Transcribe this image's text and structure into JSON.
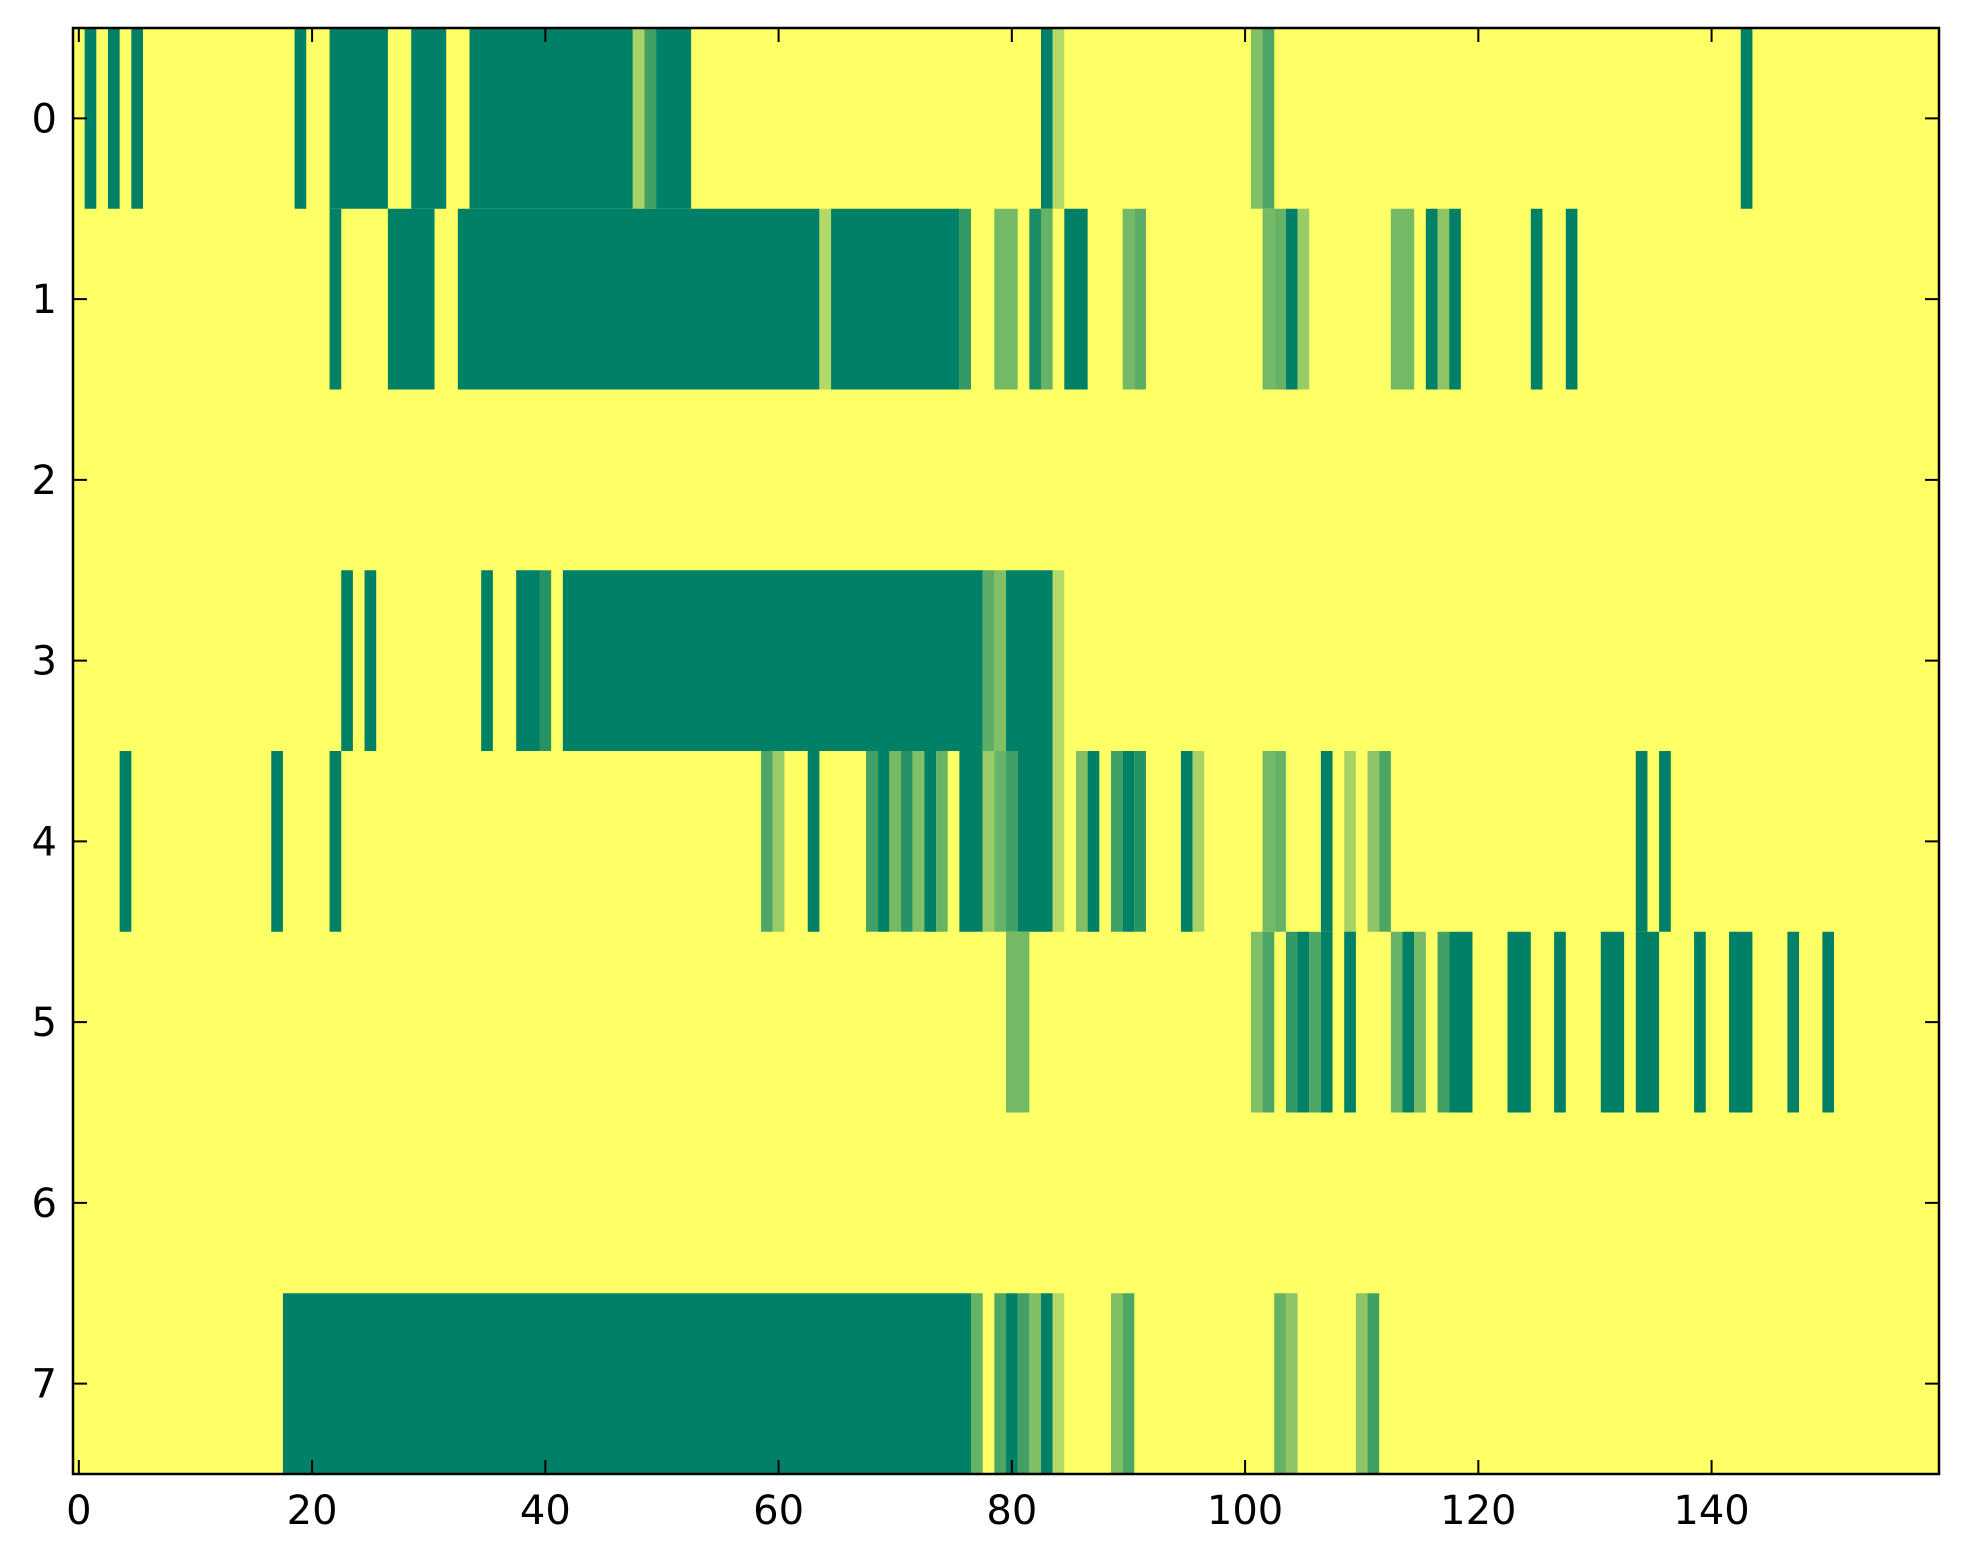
{
  "chart_data": {
    "type": "heatmap",
    "title": "",
    "xlabel": "",
    "ylabel": "",
    "xlim": [
      -0.5,
      159.5
    ],
    "ylim": [
      7.5,
      -0.5
    ],
    "x_ticks": [
      0,
      20,
      40,
      60,
      80,
      100,
      120,
      140
    ],
    "x_tick_labels": [
      "0",
      "20",
      "40",
      "60",
      "80",
      "100",
      "120",
      "140"
    ],
    "y_ticks": [
      0,
      1,
      2,
      3,
      4,
      5,
      6,
      7
    ],
    "y_tick_labels": [
      "0",
      "1",
      "2",
      "3",
      "4",
      "5",
      "6",
      "7"
    ],
    "grid": false,
    "colormap": "summer_r",
    "value_range": [
      0,
      1
    ],
    "background_value": 0,
    "colors": {
      "low": "#ffff66",
      "mid": "#80bf66",
      "high": "#008066"
    },
    "rows": [
      {
        "row": 0,
        "segments": [
          [
            1,
            1,
            1
          ],
          [
            3,
            3,
            1
          ],
          [
            5,
            5,
            1
          ],
          [
            19,
            19,
            1
          ],
          [
            22,
            26,
            1
          ],
          [
            29,
            31,
            1
          ],
          [
            34,
            47,
            1
          ],
          [
            48,
            48,
            0.35
          ],
          [
            49,
            49,
            0.75
          ],
          [
            50,
            52,
            1
          ],
          [
            83,
            83,
            1
          ],
          [
            84,
            84,
            0.3
          ],
          [
            101,
            101,
            0.5
          ],
          [
            102,
            102,
            0.7
          ],
          [
            143,
            143,
            1
          ]
        ]
      },
      {
        "row": 1,
        "segments": [
          [
            22,
            22,
            1
          ],
          [
            27,
            30,
            1
          ],
          [
            33,
            63,
            1
          ],
          [
            64,
            64,
            0.3
          ],
          [
            65,
            75,
            1
          ],
          [
            76,
            76,
            0.8
          ],
          [
            79,
            80,
            0.55
          ],
          [
            82,
            82,
            0.9
          ],
          [
            83,
            83,
            0.6
          ],
          [
            85,
            86,
            1
          ],
          [
            90,
            90,
            0.55
          ],
          [
            91,
            91,
            0.65
          ],
          [
            102,
            102,
            0.55
          ],
          [
            103,
            103,
            0.6
          ],
          [
            104,
            104,
            1
          ],
          [
            105,
            105,
            0.4
          ],
          [
            113,
            114,
            0.55
          ],
          [
            116,
            116,
            1
          ],
          [
            117,
            117,
            0.45
          ],
          [
            118,
            118,
            1
          ],
          [
            125,
            125,
            1
          ],
          [
            128,
            128,
            1
          ]
        ]
      },
      {
        "row": 2,
        "segments": []
      },
      {
        "row": 3,
        "segments": [
          [
            23,
            23,
            1
          ],
          [
            25,
            25,
            1
          ],
          [
            35,
            35,
            1
          ],
          [
            38,
            39,
            1
          ],
          [
            40,
            40,
            0.85
          ],
          [
            42,
            77,
            1
          ],
          [
            78,
            78,
            0.65
          ],
          [
            79,
            79,
            0.5
          ],
          [
            80,
            83,
            1
          ],
          [
            84,
            84,
            0.3
          ]
        ]
      },
      {
        "row": 4,
        "segments": [
          [
            4,
            4,
            1
          ],
          [
            17,
            17,
            1
          ],
          [
            22,
            22,
            1
          ],
          [
            59,
            59,
            0.7
          ],
          [
            60,
            60,
            0.4
          ],
          [
            63,
            63,
            1
          ],
          [
            68,
            68,
            0.75
          ],
          [
            69,
            69,
            1
          ],
          [
            70,
            70,
            0.55
          ],
          [
            71,
            71,
            0.85
          ],
          [
            72,
            72,
            0.5
          ],
          [
            73,
            73,
            1
          ],
          [
            74,
            74,
            0.6
          ],
          [
            76,
            77,
            1
          ],
          [
            78,
            78,
            0.4
          ],
          [
            79,
            79,
            0.6
          ],
          [
            80,
            80,
            0.75
          ],
          [
            81,
            83,
            1
          ],
          [
            84,
            84,
            0.3
          ],
          [
            86,
            86,
            0.5
          ],
          [
            87,
            87,
            1
          ],
          [
            89,
            89,
            0.75
          ],
          [
            90,
            90,
            1
          ],
          [
            91,
            91,
            0.85
          ],
          [
            95,
            95,
            1
          ],
          [
            96,
            96,
            0.35
          ],
          [
            102,
            102,
            0.55
          ],
          [
            103,
            103,
            0.6
          ],
          [
            107,
            107,
            1
          ],
          [
            109,
            109,
            0.35
          ],
          [
            111,
            111,
            0.45
          ],
          [
            112,
            112,
            0.7
          ],
          [
            134,
            134,
            1
          ],
          [
            136,
            136,
            1
          ]
        ]
      },
      {
        "row": 5,
        "segments": [
          [
            80,
            81,
            0.55
          ],
          [
            101,
            101,
            0.5
          ],
          [
            102,
            102,
            0.7
          ],
          [
            104,
            104,
            0.8
          ],
          [
            105,
            105,
            1
          ],
          [
            106,
            106,
            0.7
          ],
          [
            107,
            107,
            1
          ],
          [
            109,
            109,
            1
          ],
          [
            113,
            113,
            0.6
          ],
          [
            114,
            114,
            1
          ],
          [
            115,
            115,
            0.55
          ],
          [
            117,
            117,
            0.75
          ],
          [
            118,
            119,
            1
          ],
          [
            123,
            124,
            1
          ],
          [
            127,
            127,
            1
          ],
          [
            131,
            132,
            1
          ],
          [
            134,
            135,
            1
          ],
          [
            139,
            139,
            1
          ],
          [
            142,
            143,
            1
          ],
          [
            147,
            147,
            1
          ],
          [
            150,
            150,
            1
          ]
        ]
      },
      {
        "row": 6,
        "segments": []
      },
      {
        "row": 7,
        "segments": [
          [
            18,
            76,
            1
          ],
          [
            77,
            77,
            0.6
          ],
          [
            79,
            79,
            0.7
          ],
          [
            80,
            80,
            1
          ],
          [
            81,
            81,
            0.75
          ],
          [
            82,
            82,
            0.5
          ],
          [
            83,
            83,
            1
          ],
          [
            84,
            84,
            0.3
          ],
          [
            89,
            89,
            0.5
          ],
          [
            90,
            90,
            0.7
          ],
          [
            103,
            103,
            0.6
          ],
          [
            104,
            104,
            0.45
          ],
          [
            110,
            110,
            0.45
          ],
          [
            111,
            111,
            0.75
          ]
        ]
      }
    ]
  }
}
